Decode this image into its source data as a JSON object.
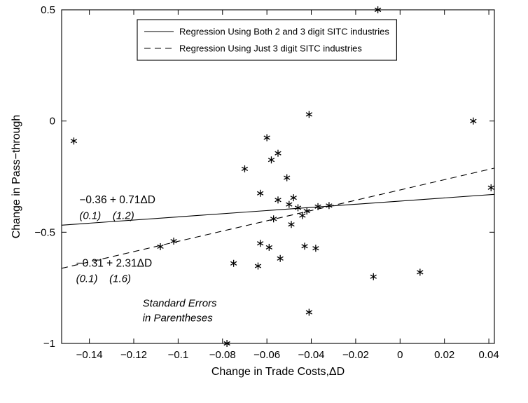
{
  "figure": {
    "background": "#ffffff",
    "ink_color": "#000000"
  },
  "chart_data": {
    "type": "scatter",
    "title": "",
    "xlabel": "Change in Trade Costs,ΔD",
    "ylabel": "Change in Pass−through",
    "xlim": [
      -0.1525,
      0.0425
    ],
    "ylim": [
      -1,
      0.5
    ],
    "grid": false,
    "xticks": [
      -0.14,
      -0.12,
      -0.1,
      -0.08,
      -0.06,
      -0.04,
      -0.02,
      0,
      0.02,
      0.04
    ],
    "xtick_labels": [
      "−0.14",
      "−0.12",
      "−0.1",
      "−0.08",
      "−0.06",
      "−0.04",
      "−0.02",
      "0",
      "0.02",
      "0.04"
    ],
    "yticks": [
      -1,
      -0.5,
      0,
      0.5
    ],
    "ytick_labels": [
      "−1",
      "−0.5",
      "0",
      "0.5"
    ],
    "legend": {
      "position": "top-center-inside",
      "entries": [
        {
          "label": "Regression Using Both 2 and 3 digit SITC industries",
          "line": "solid"
        },
        {
          "label": "Regression Using Just 3 digit SITC industries",
          "line": "dashed"
        }
      ]
    },
    "lines": [
      {
        "name": "both-2-and-3-digit",
        "style": "solid",
        "intercept": -0.36,
        "slope": 0.71
      },
      {
        "name": "just-3-digit",
        "style": "dashed",
        "intercept": -0.31,
        "slope": 2.31
      }
    ],
    "points": [
      [
        -0.147,
        -0.09
      ],
      [
        -0.01,
        0.5
      ],
      [
        0.033,
        0.0
      ],
      [
        -0.041,
        0.03
      ],
      [
        -0.06,
        -0.075
      ],
      [
        -0.055,
        -0.145
      ],
      [
        -0.058,
        -0.175
      ],
      [
        -0.07,
        -0.215
      ],
      [
        -0.051,
        -0.255
      ],
      [
        -0.063,
        -0.325
      ],
      [
        -0.055,
        -0.355
      ],
      [
        -0.05,
        -0.375
      ],
      [
        -0.048,
        -0.345
      ],
      [
        -0.046,
        -0.39
      ],
      [
        -0.042,
        -0.405
      ],
      [
        -0.037,
        -0.385
      ],
      [
        -0.032,
        -0.38
      ],
      [
        -0.044,
        -0.425
      ],
      [
        -0.057,
        -0.44
      ],
      [
        -0.049,
        -0.465
      ],
      [
        -0.102,
        -0.54
      ],
      [
        -0.108,
        -0.565
      ],
      [
        -0.063,
        -0.55
      ],
      [
        -0.059,
        -0.568
      ],
      [
        -0.043,
        -0.563
      ],
      [
        -0.038,
        -0.572
      ],
      [
        -0.075,
        -0.64
      ],
      [
        -0.064,
        -0.652
      ],
      [
        -0.054,
        -0.618
      ],
      [
        0.041,
        -0.3
      ],
      [
        -0.012,
        -0.7
      ],
      [
        0.009,
        -0.68
      ],
      [
        -0.041,
        -0.86
      ],
      [
        -0.078,
        -1.0
      ]
    ],
    "annotations": [
      {
        "text": "−0.36 + 0.71ΔD",
        "x": -0.1445,
        "y": -0.37,
        "italic": false
      },
      {
        "text": "(0.1)    (1.2)",
        "x": -0.1445,
        "y": -0.44,
        "italic": true
      },
      {
        "text": "−0.31 + 2.31ΔD",
        "x": -0.146,
        "y": -0.655,
        "italic": false
      },
      {
        "text": "(0.1)    (1.6)",
        "x": -0.146,
        "y": -0.725,
        "italic": true
      },
      {
        "text": "Standard Errors",
        "x": -0.116,
        "y": -0.835,
        "italic": true
      },
      {
        "text": "in Parentheses",
        "x": -0.116,
        "y": -0.9,
        "italic": true
      }
    ]
  }
}
